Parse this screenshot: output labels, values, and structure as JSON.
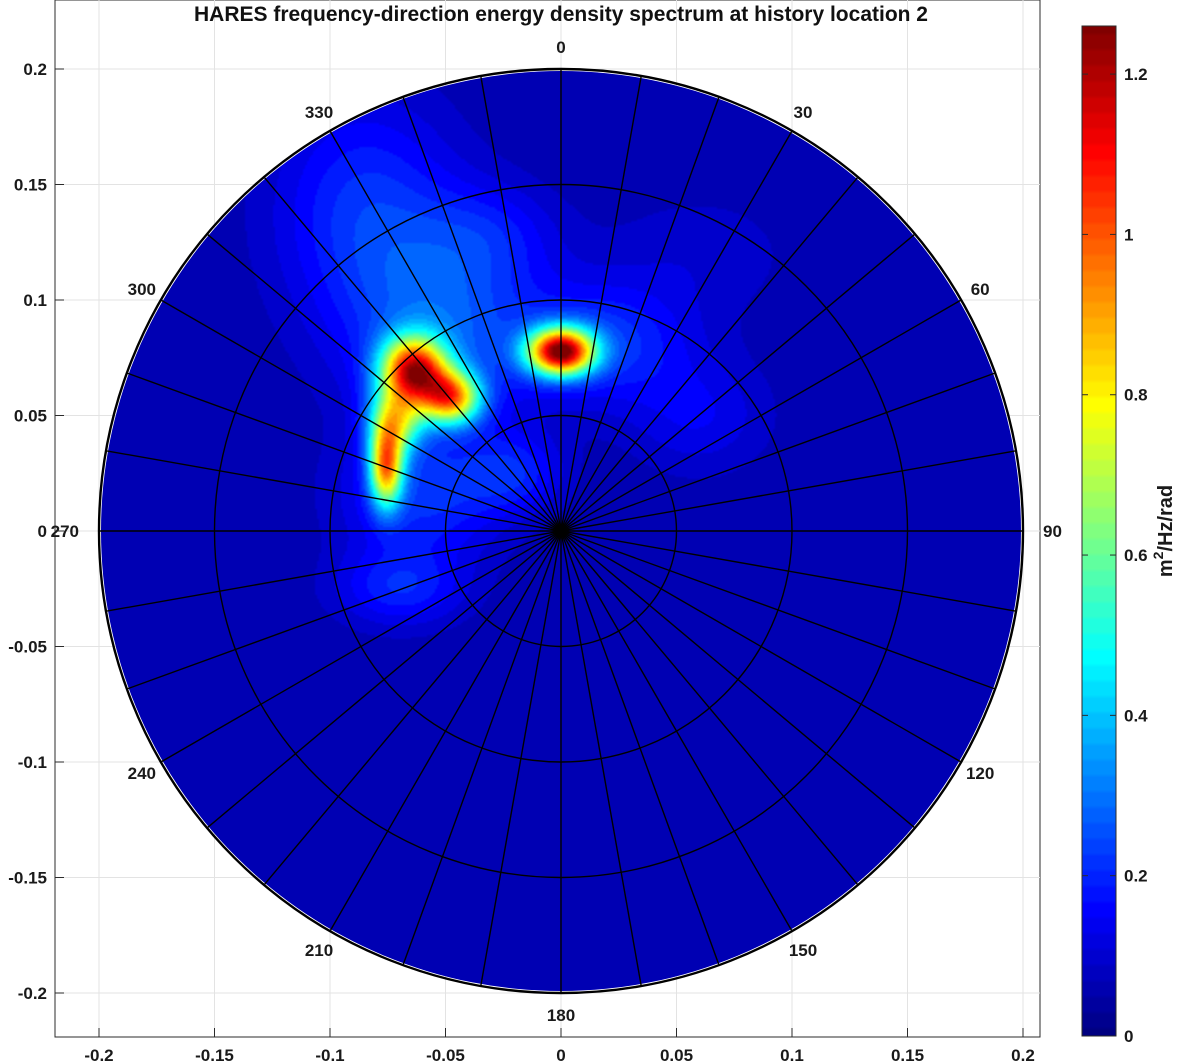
{
  "chart_data": {
    "type": "heatmap",
    "subtype": "polar-contour",
    "title": "HARES frequency-direction energy density spectrum at history location 2",
    "xlim": [
      -0.22,
      0.22
    ],
    "ylim": [
      -0.22,
      0.22
    ],
    "x_ticks": [
      -0.2,
      -0.15,
      -0.1,
      -0.05,
      0,
      0.05,
      0.1,
      0.15,
      0.2
    ],
    "y_ticks": [
      -0.2,
      -0.15,
      -0.1,
      -0.05,
      0,
      0.05,
      0.1,
      0.15,
      0.2
    ],
    "x_tick_labels": [
      "-0.2",
      "-0.15",
      "-0.1",
      "-0.05",
      "0",
      "0.05",
      "0.1",
      "0.15",
      "0.2"
    ],
    "y_tick_labels": [
      "-0.2",
      "-0.15",
      "-0.1",
      "-0.05",
      "0",
      "0.05",
      "0.1",
      "0.15",
      "0.2"
    ],
    "grid": true,
    "polar_radius": 0.2,
    "radial_rings": [
      0.05,
      0.1,
      0.15,
      0.2
    ],
    "spoke_step_deg": 10,
    "direction_labels": [
      {
        "angle": 0,
        "text": "0"
      },
      {
        "angle": 30,
        "text": "30"
      },
      {
        "angle": 60,
        "text": "60"
      },
      {
        "angle": 90,
        "text": "90"
      },
      {
        "angle": 120,
        "text": "120"
      },
      {
        "angle": 150,
        "text": "150"
      },
      {
        "angle": 180,
        "text": "180"
      },
      {
        "angle": 210,
        "text": "210"
      },
      {
        "angle": 240,
        "text": "240"
      },
      {
        "angle": 270,
        "text": "270"
      },
      {
        "angle": 300,
        "text": "300"
      },
      {
        "angle": 330,
        "text": "330"
      }
    ],
    "colorbar": {
      "label_base": "m",
      "label_sup": "2",
      "label_rest": "/Hz/rad",
      "min": 0,
      "max": 1.26,
      "ticks": [
        0,
        0.2,
        0.4,
        0.6,
        0.8,
        1,
        1.2
      ],
      "tick_labels": [
        "0",
        "0.2",
        "0.4",
        "0.6",
        "0.8",
        "1",
        "1.2"
      ],
      "colormap": "jet"
    },
    "background_level": 0.05,
    "energy_peaks": [
      {
        "x": -0.064,
        "y": 0.07,
        "sx": 0.01,
        "sy": 0.01,
        "amp": 0.98
      },
      {
        "x": -0.048,
        "y": 0.058,
        "sx": 0.009,
        "sy": 0.008,
        "amp": 0.78
      },
      {
        "x": -0.072,
        "y": 0.048,
        "sx": 0.008,
        "sy": 0.01,
        "amp": 0.55
      },
      {
        "x": -0.076,
        "y": 0.028,
        "sx": 0.005,
        "sy": 0.012,
        "amp": 0.78
      },
      {
        "x": 0.0,
        "y": 0.078,
        "sx": 0.01,
        "sy": 0.007,
        "amp": 1.12
      },
      {
        "x": -0.085,
        "y": 0.14,
        "sx": 0.028,
        "sy": 0.035,
        "amp": 0.16
      },
      {
        "x": -0.05,
        "y": 0.09,
        "sx": 0.03,
        "sy": 0.03,
        "amp": 0.2
      },
      {
        "x": -0.06,
        "y": 0.015,
        "sx": 0.025,
        "sy": 0.02,
        "amp": 0.16
      },
      {
        "x": -0.07,
        "y": -0.025,
        "sx": 0.02,
        "sy": 0.012,
        "amp": 0.14
      },
      {
        "x": 0.02,
        "y": 0.082,
        "sx": 0.025,
        "sy": 0.018,
        "amp": 0.16
      },
      {
        "x": -0.02,
        "y": 0.025,
        "sx": 0.015,
        "sy": 0.012,
        "amp": 0.12
      },
      {
        "x": 0.06,
        "y": 0.05,
        "sx": 0.022,
        "sy": 0.018,
        "amp": 0.09
      },
      {
        "x": 0.06,
        "y": 0.12,
        "sx": 0.03,
        "sy": 0.02,
        "amp": 0.05
      },
      {
        "x": -0.03,
        "y": 0.13,
        "sx": 0.02,
        "sy": 0.015,
        "amp": 0.08
      }
    ]
  }
}
